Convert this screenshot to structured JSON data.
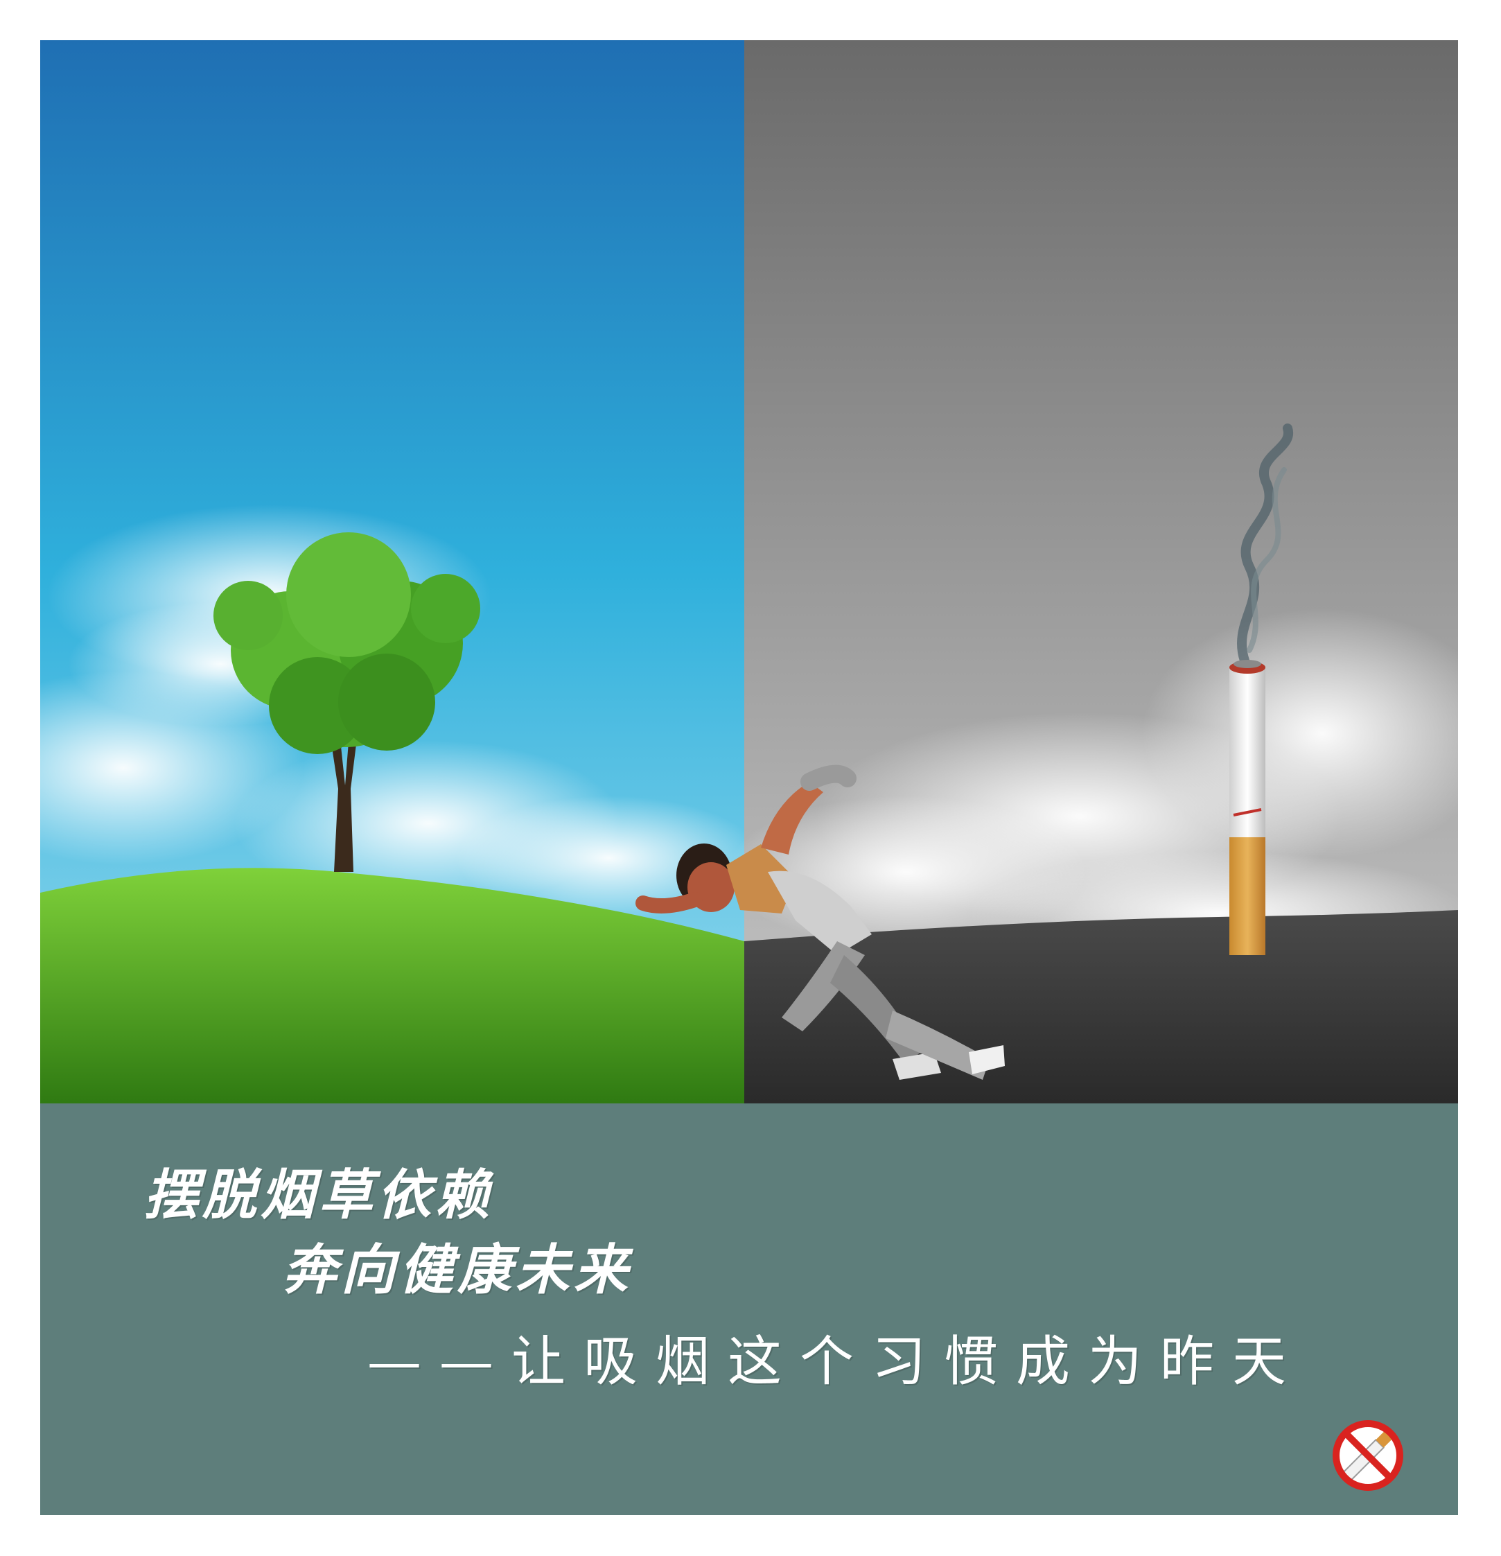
{
  "colors": {
    "sky_top": "#1f6fb3",
    "sky_mid": "#2fb0dc",
    "sky_low": "#9bdcef",
    "grass_light": "#7fd13a",
    "grass_dark": "#2f7a12",
    "grey_sky_top": "#6a6a6a",
    "grey_sky_low": "#c9c9c9",
    "grey_ground": "#2a2a2a",
    "caption_bg": "#5e7e7b",
    "caption_text": "#ffffff",
    "sign_red": "#d9231f"
  },
  "slogan": {
    "line1": "摆脱烟草依赖",
    "line2": "奔向健康未来",
    "line3": "——让吸烟这个习惯成为昨天"
  },
  "icons": {
    "tree": "tree-icon",
    "runner": "runner-figure",
    "cigarette": "cigarette-icon",
    "no_smoking": "no-smoking-icon"
  }
}
